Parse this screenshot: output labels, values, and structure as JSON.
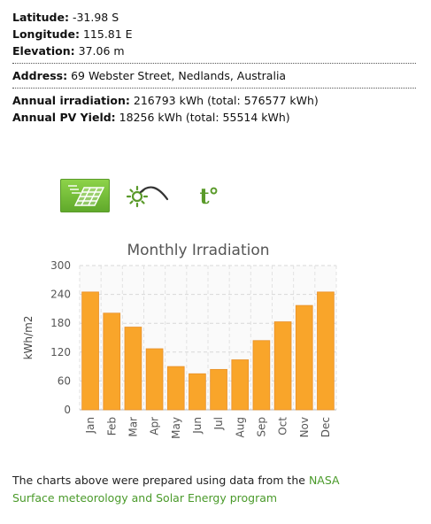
{
  "location": {
    "latitude_label": "Latitude:",
    "latitude_value": "-31.98 S",
    "longitude_label": "Longitude:",
    "longitude_value": "115.81 E",
    "elevation_label": "Elevation:",
    "elevation_value": "37.06 m",
    "address_label": "Address:",
    "address_value": "69 Webster Street, Nedlands, Australia"
  },
  "yield": {
    "irradiation_label": "Annual irradiation:",
    "irradiation_value": "216793 kWh (total: 576577 kWh)",
    "pv_label": "Annual PV Yield:",
    "pv_value": "18256 kWh (total: 55514 kWh)"
  },
  "tabs": [
    {
      "name": "irradiation-tab",
      "icon": "solar-panel-icon",
      "active": true
    },
    {
      "name": "sun-path-tab",
      "icon": "sun-path-icon",
      "active": false
    },
    {
      "name": "temperature-tab",
      "icon": "temperature-icon",
      "label": "t°",
      "active": false
    }
  ],
  "colors": {
    "bar": "#f9a52a",
    "active_tab": "#6cb832",
    "link": "#4a9a2a"
  },
  "chart_data": {
    "type": "bar",
    "title": "Monthly Irradiation",
    "ylabel": "kWh/m2",
    "xlabel": "",
    "categories": [
      "Jan",
      "Feb",
      "Mar",
      "Apr",
      "May",
      "Jun",
      "Jul",
      "Aug",
      "Sep",
      "Oct",
      "Nov",
      "Dec"
    ],
    "values": [
      245,
      201,
      172,
      127,
      90,
      75,
      84,
      104,
      144,
      183,
      217,
      245
    ],
    "ylim": [
      0,
      300
    ],
    "yticks": [
      "0",
      "60",
      "120",
      "180",
      "240",
      "300"
    ],
    "grid": true,
    "legend": "none"
  },
  "footer": {
    "text": "The charts above were prepared using data from the",
    "link_part1": "NASA",
    "link_part2": "Surface meteorology and Solar Energy program"
  }
}
